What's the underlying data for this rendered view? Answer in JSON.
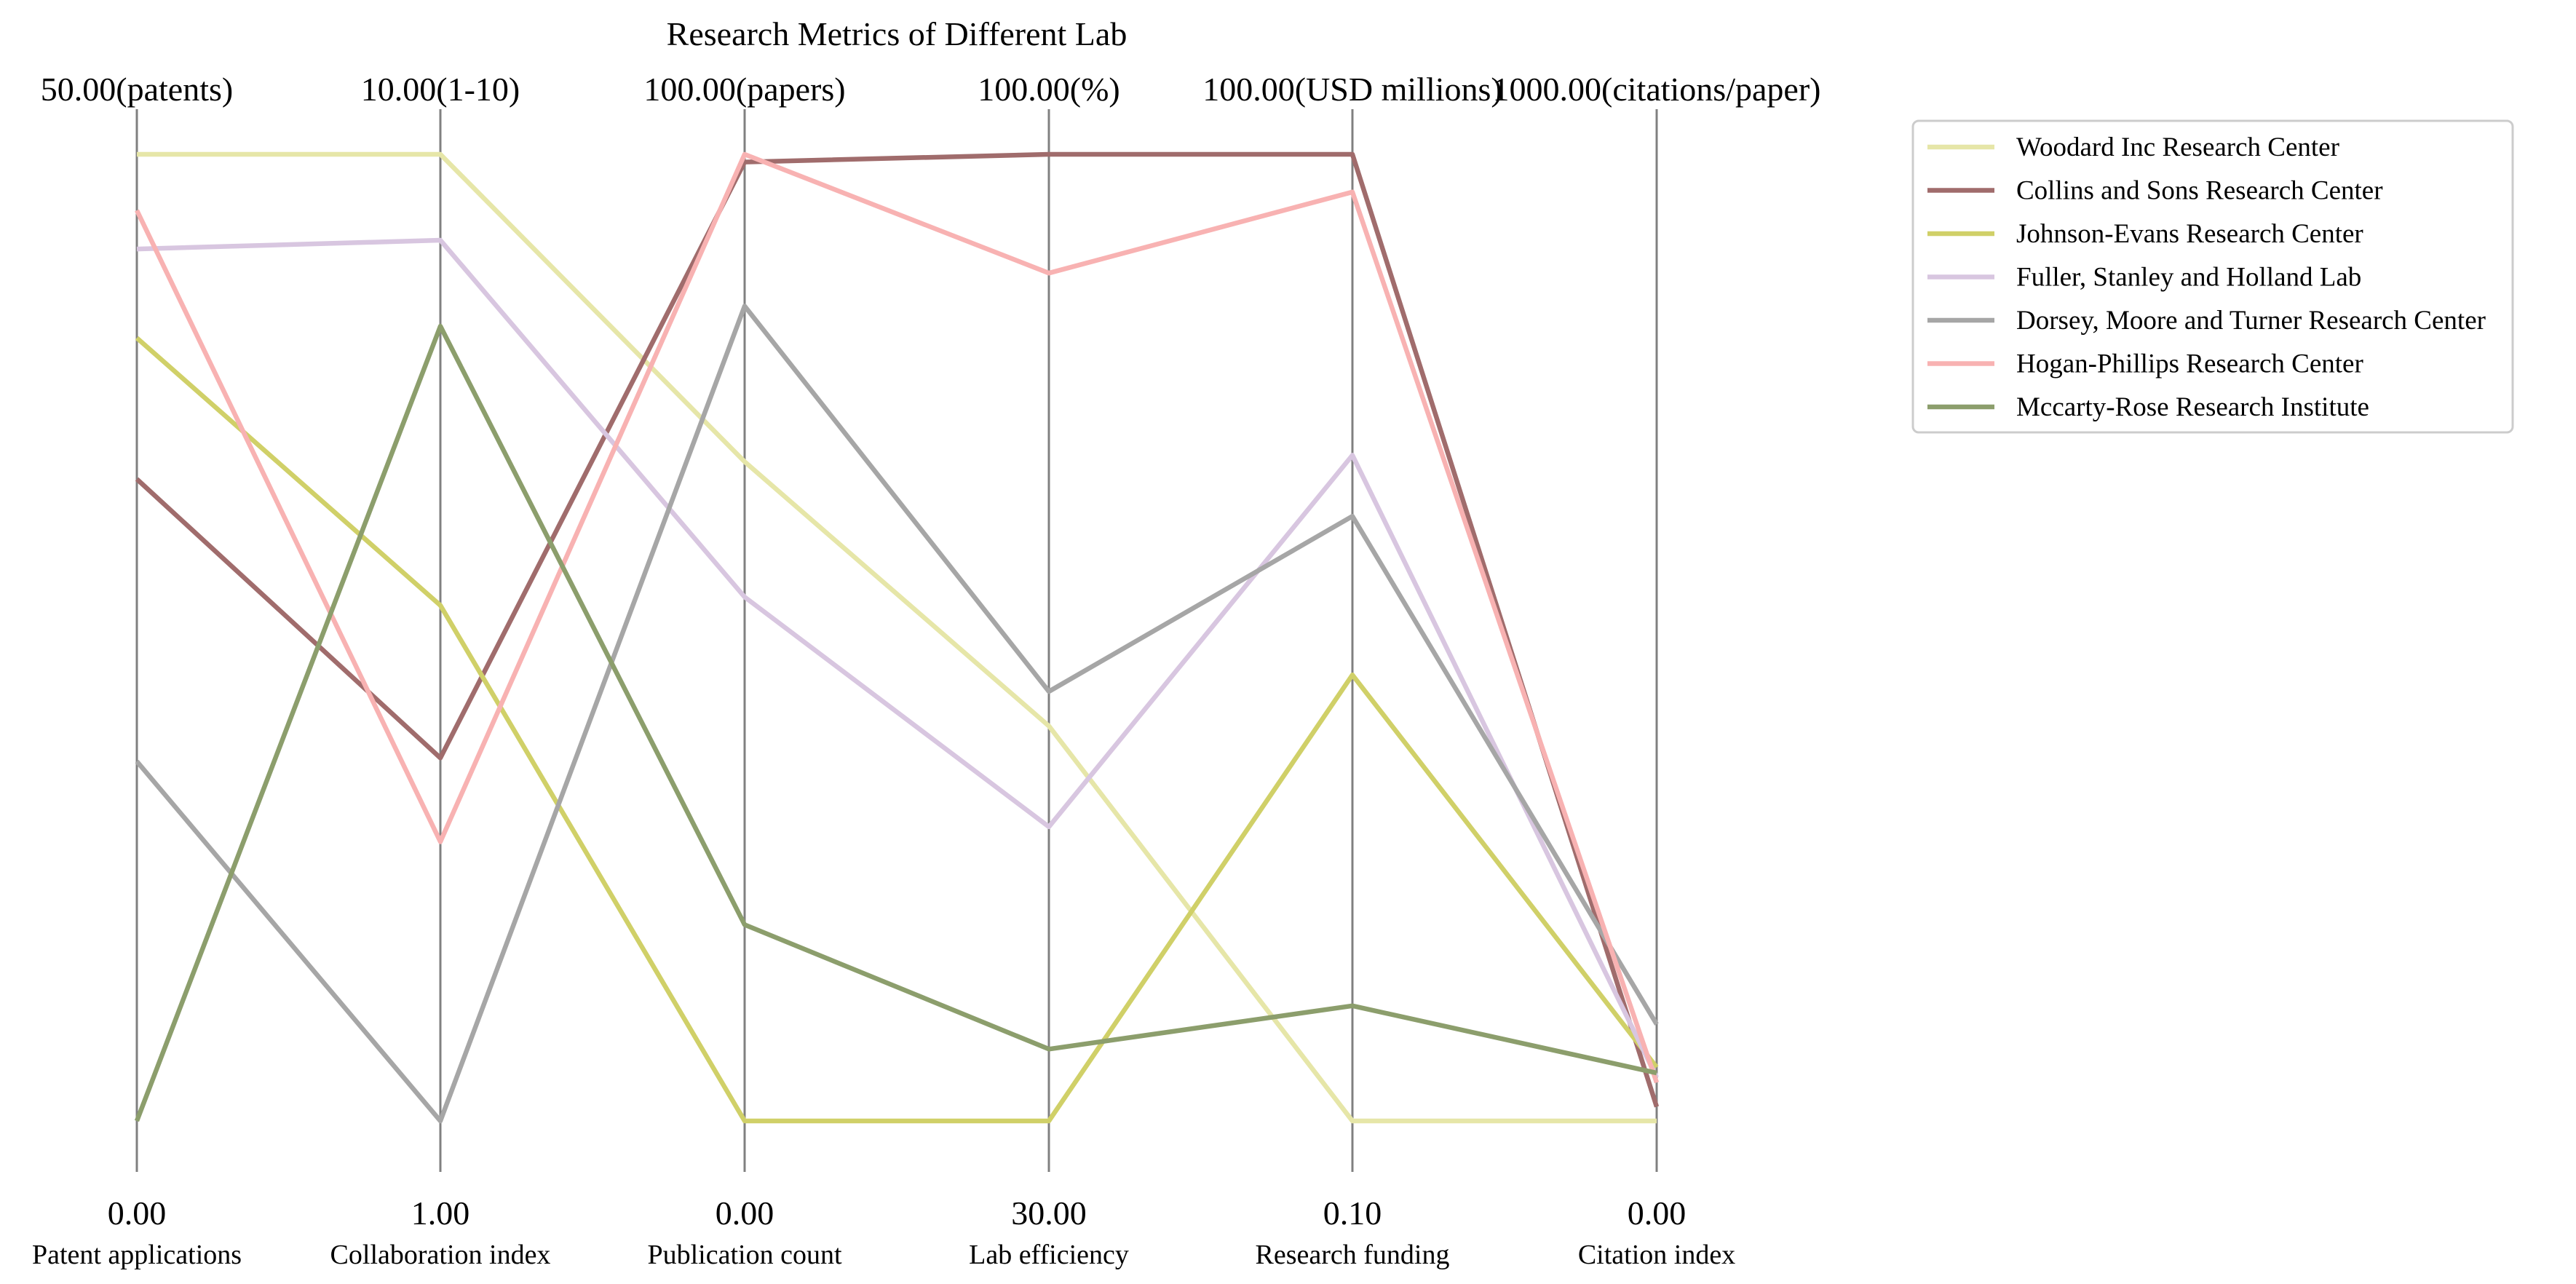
{
  "chart_data": {
    "type": "parallel_coordinates",
    "title": "Research Metrics of Different Lab",
    "axes": [
      {
        "name": "Patent applications",
        "min": 0,
        "max": 50,
        "min_label": "0.00",
        "max_label": "50.00(patents)"
      },
      {
        "name": "Collaboration index",
        "min": 1,
        "max": 10,
        "min_label": "1.00",
        "max_label": "10.00(1-10)"
      },
      {
        "name": "Publication count",
        "min": 0,
        "max": 100,
        "min_label": "0.00",
        "max_label": "100.00(papers)"
      },
      {
        "name": "Lab efficiency",
        "min": 30,
        "max": 100,
        "min_label": "30.00",
        "max_label": "100.00(%)"
      },
      {
        "name": "Research funding",
        "min": 0.1,
        "max": 100,
        "min_label": "0.10",
        "max_label": "100.00(USD millions)"
      },
      {
        "name": "Citation index",
        "min": 0,
        "max": 1000,
        "min_label": "0.00",
        "max_label": "1000.00(citations/paper)"
      }
    ],
    "series": [
      {
        "name": "Woodard Inc  Research Center",
        "color": "#e6e6a8",
        "values": [
          50,
          10,
          68.2,
          58.6,
          0.1,
          0
        ]
      },
      {
        "name": "Collins and Sons  Research Center",
        "color": "#a06c6c",
        "values": [
          33.2,
          4.38,
          99.2,
          100,
          100,
          14.7
        ]
      },
      {
        "name": "Johnson-Evans  Research Center",
        "color": "#d0d068",
        "values": [
          40.5,
          5.8,
          0,
          30,
          46.2,
          55.5
        ]
      },
      {
        "name": "Fuller, Stanley and Holland  Lab",
        "color": "#d8c6e0",
        "values": [
          45.1,
          9.2,
          54.2,
          51.3,
          68.9,
          45
        ]
      },
      {
        "name": "Dorsey, Moore and Turner  Research Center",
        "color": "#a6a6a6",
        "values": [
          18.6,
          1,
          84.3,
          61.1,
          62.6,
          100
        ]
      },
      {
        "name": "Hogan-Phillips  Research Center",
        "color": "#f8b2b2",
        "values": [
          47.1,
          3.6,
          100,
          91.4,
          96.1,
          39.7
        ]
      },
      {
        "name": "Mccarty-Rose  Research Institute",
        "color": "#8c9e6c",
        "values": [
          0,
          8.4,
          20.3,
          35.2,
          12,
          49.6
        ]
      }
    ],
    "legend_position": "outside-right",
    "grid": false
  }
}
